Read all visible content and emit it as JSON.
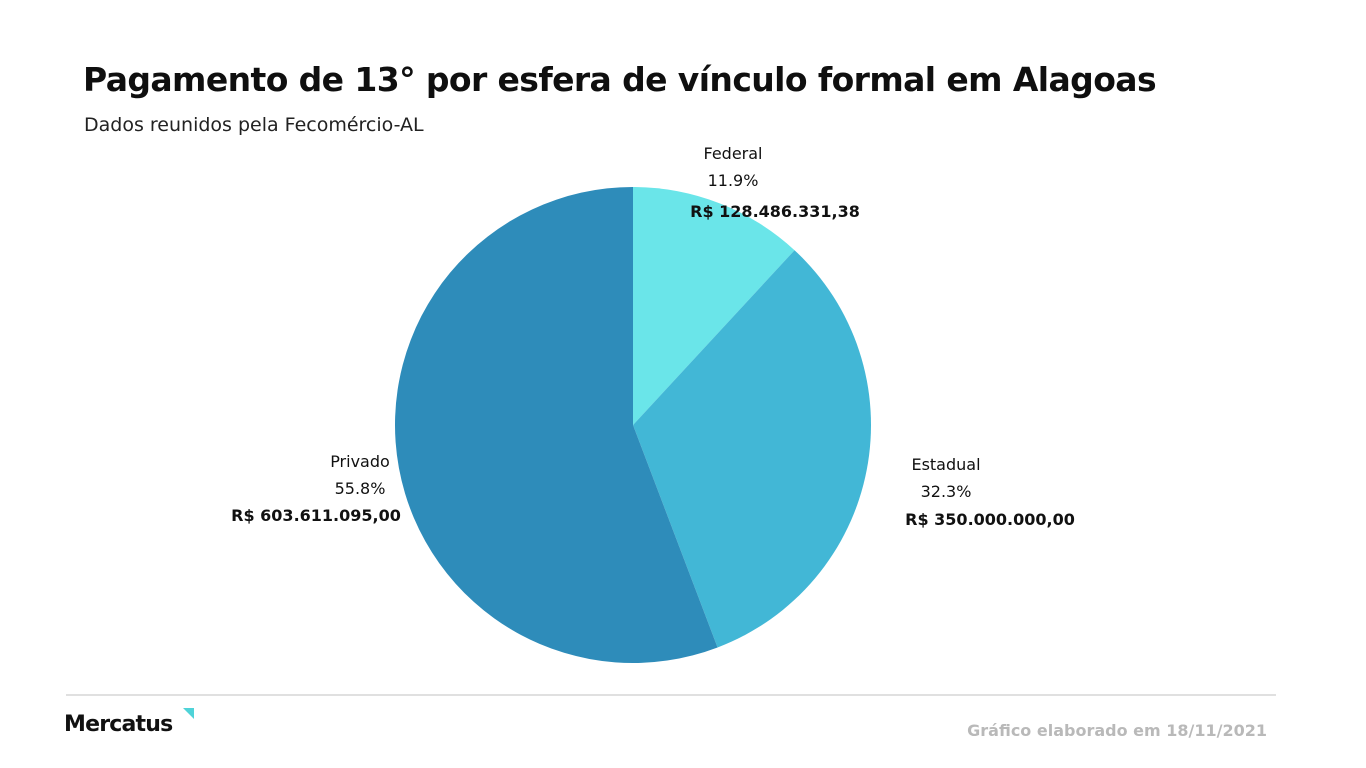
{
  "header": {
    "title": "Pagamento de 13° por esfera de vínculo formal em Alagoas",
    "subtitle": "Dados reunidos pela Fecomércio-AL"
  },
  "footer": {
    "brand": "Mercatus",
    "note": "Gráfico elaborado em 18/11/2021"
  },
  "colors": {
    "federal": "#6ae5e9",
    "estadual": "#42b7d6",
    "privado": "#2e8cba",
    "logo_accent": "#4fd3d8"
  },
  "chart_data": {
    "type": "pie",
    "title": "Pagamento de 13° por esfera de vínculo formal em Alagoas",
    "subtitle": "Dados reunidos pela Fecomércio-AL",
    "start_angle": "12 o'clock",
    "direction": "clockwise",
    "slices": [
      {
        "label": "Federal",
        "percent": "11.9%",
        "value": 128486331.38,
        "value_label": "R$ 128.486.331,38",
        "color": "#6ae5e9"
      },
      {
        "label": "Estadual",
        "percent": "32.3%",
        "value": 350000000.0,
        "value_label": "R$ 350.000.000,00",
        "color": "#42b7d6"
      },
      {
        "label": "Privado",
        "percent": "55.8%",
        "value": 603611095.0,
        "value_label": "R$ 603.611.095,00",
        "color": "#2e8cba"
      }
    ]
  }
}
